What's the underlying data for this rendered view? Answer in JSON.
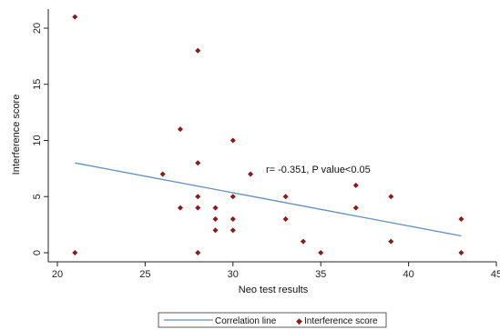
{
  "chart_data": {
    "type": "scatter",
    "xlabel": "Neo test results",
    "ylabel": "Interference score",
    "xlim": [
      20,
      45
    ],
    "ylim": [
      0,
      22
    ],
    "x_ticks": [
      20,
      25,
      30,
      35,
      40,
      45
    ],
    "x_tick_labels": [
      "20",
      "25",
      "30",
      "35",
      "40",
      "45"
    ],
    "y_ticks": [
      0,
      5,
      10,
      15,
      20
    ],
    "y_tick_labels": [
      "0",
      "5",
      "10",
      "15",
      "20"
    ],
    "grid": false,
    "legend_position": "bottom-center",
    "annotation": "r= -0.351, P value<0.05",
    "series": [
      {
        "name": "Interference score",
        "kind": "scatter",
        "color": "#8b1a1a",
        "points": [
          [
            21,
            21
          ],
          [
            21,
            0
          ],
          [
            26,
            7
          ],
          [
            27,
            11
          ],
          [
            27,
            4
          ],
          [
            28,
            18
          ],
          [
            28,
            8
          ],
          [
            28,
            5
          ],
          [
            28,
            4
          ],
          [
            28,
            0
          ],
          [
            29,
            4
          ],
          [
            29,
            3
          ],
          [
            29,
            2
          ],
          [
            30,
            10
          ],
          [
            30,
            5
          ],
          [
            30,
            3
          ],
          [
            30,
            2
          ],
          [
            31,
            7
          ],
          [
            33,
            5
          ],
          [
            33,
            3
          ],
          [
            34,
            1
          ],
          [
            35,
            0
          ],
          [
            37,
            6
          ],
          [
            37,
            4
          ],
          [
            39,
            5
          ],
          [
            39,
            1
          ],
          [
            43,
            3
          ],
          [
            43,
            0
          ]
        ]
      },
      {
        "name": "Correlation line",
        "kind": "line",
        "color": "#5f8fbf",
        "points": [
          [
            21,
            8
          ],
          [
            43,
            1.5
          ]
        ]
      }
    ]
  }
}
